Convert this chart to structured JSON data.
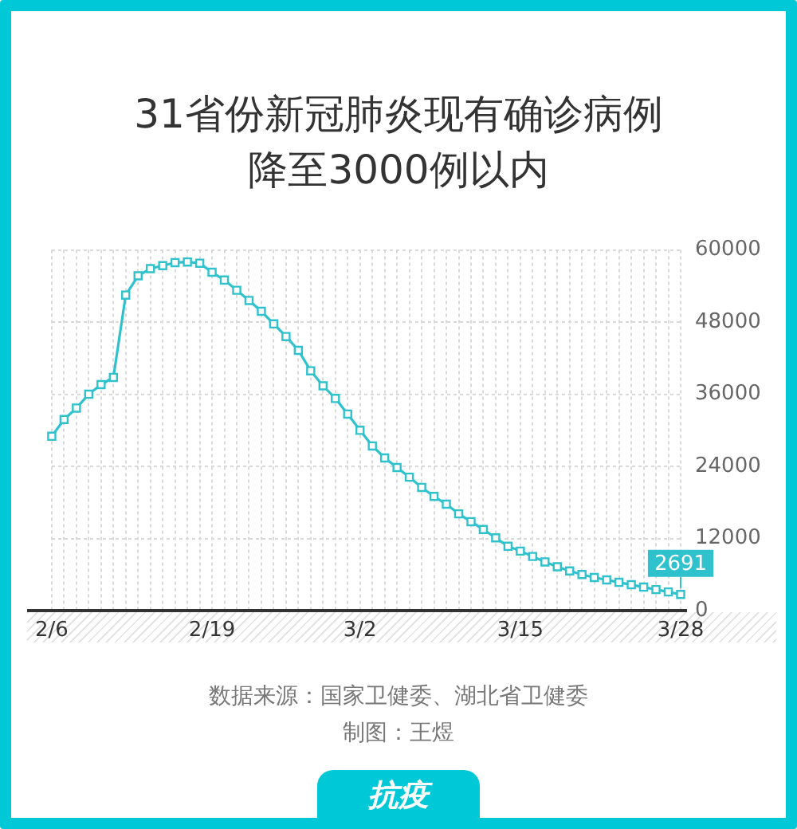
{
  "chart_data": {
    "type": "line",
    "title": "31省份新冠肺炎现有确诊病例降至3000例以内",
    "categories": [
      "2/6",
      null,
      null,
      null,
      null,
      null,
      null,
      null,
      null,
      null,
      null,
      null,
      null,
      "2/19",
      null,
      null,
      null,
      null,
      null,
      null,
      null,
      null,
      null,
      null,
      null,
      "3/2",
      null,
      null,
      null,
      null,
      null,
      null,
      null,
      null,
      null,
      null,
      null,
      null,
      "3/15",
      null,
      null,
      null,
      null,
      null,
      null,
      null,
      null,
      null,
      null,
      null,
      null,
      "3/28"
    ],
    "series": [
      {
        "color": "#2fc2cd",
        "values": [
          29000,
          31800,
          33700,
          36000,
          37600,
          38800,
          52500,
          55700,
          56900,
          57400,
          57900,
          58000,
          57800,
          56300,
          55000,
          53300,
          51600,
          49800,
          47700,
          45600,
          43300,
          39900,
          37400,
          35300,
          32700,
          30000,
          27400,
          25400,
          23800,
          22200,
          20500,
          19000,
          17700,
          16100,
          14800,
          13500,
          12100,
          10700,
          9900,
          9000,
          8100,
          7300,
          6600,
          6000,
          5500,
          5100,
          4700,
          4300,
          3900,
          3500,
          3100,
          2691
        ],
        "value_labels": [
          null,
          null,
          null,
          null,
          null,
          null,
          null,
          null,
          null,
          null,
          null,
          null,
          null,
          null,
          null,
          null,
          null,
          null,
          null,
          null,
          null,
          null,
          null,
          null,
          null,
          null,
          null,
          null,
          null,
          null,
          null,
          null,
          null,
          null,
          null,
          null,
          null,
          null,
          null,
          null,
          null,
          null,
          null,
          null,
          null,
          null,
          null,
          null,
          null,
          null,
          null,
          "2691"
        ]
      }
    ],
    "ylim": [
      0,
      60000
    ],
    "yticks": [
      0,
      12000,
      24000,
      36000,
      48000,
      60000
    ],
    "grid": true,
    "marker": "square",
    "line_style": "solid",
    "annotations": [
      "数据来源：国家卫健委、湖北省卫健委",
      "制图：王煜",
      "抗疫"
    ]
  }
}
